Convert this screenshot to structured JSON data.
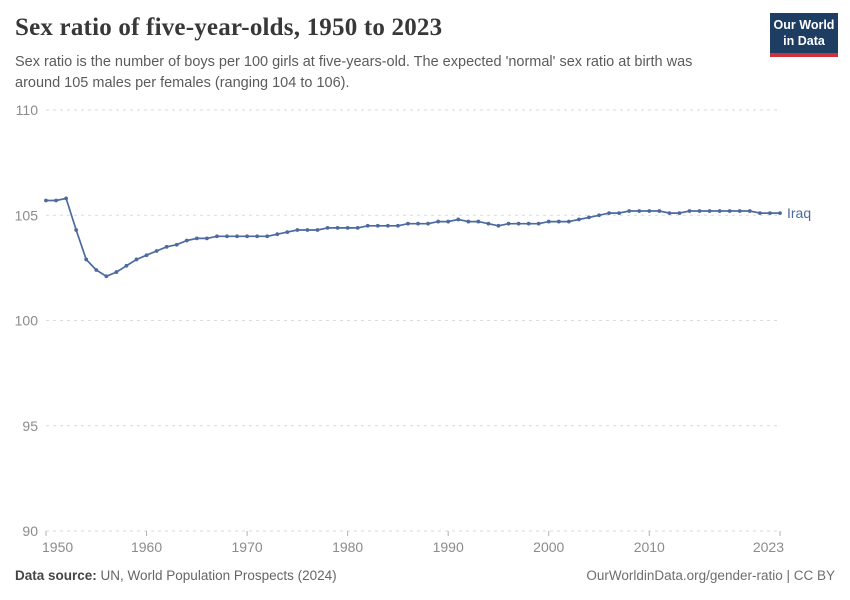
{
  "header": {
    "title": "Sex ratio of five-year-olds, 1950 to 2023",
    "subtitle": "Sex ratio is the number of boys per 100 girls at five-years-old. The expected 'normal' sex ratio at birth was around 105 males per females (ranging 104 to 106)."
  },
  "logo": {
    "line1": "Our World",
    "line2": "in Data",
    "bg_color": "#1d3d63",
    "accent_color": "#cf303e"
  },
  "footer": {
    "source_label": "Data source:",
    "source_text": " UN, World Population Prospects (2024)",
    "credit": "OurWorldinData.org/gender-ratio | CC BY"
  },
  "colors": {
    "series_blue": "#4c6a9f",
    "gridline": "#dadada",
    "tick_label": "#8b8b8b",
    "tick_mark": "#b0b0b0"
  },
  "chart_data": {
    "type": "line",
    "title": "Sex ratio of five-year-olds, 1950 to 2023",
    "xlabel": "",
    "ylabel": "",
    "ylim": [
      90,
      110
    ],
    "yticks": [
      90,
      95,
      100,
      105,
      110
    ],
    "xticks": [
      1950,
      1960,
      1970,
      1980,
      1990,
      2000,
      2010,
      2023
    ],
    "grid": "horizontal-dashed",
    "legend": "end-of-line-label",
    "x": [
      1950,
      1951,
      1952,
      1953,
      1954,
      1955,
      1956,
      1957,
      1958,
      1959,
      1960,
      1961,
      1962,
      1963,
      1964,
      1965,
      1966,
      1967,
      1968,
      1969,
      1970,
      1971,
      1972,
      1973,
      1974,
      1975,
      1976,
      1977,
      1978,
      1979,
      1980,
      1981,
      1982,
      1983,
      1984,
      1985,
      1986,
      1987,
      1988,
      1989,
      1990,
      1991,
      1992,
      1993,
      1994,
      1995,
      1996,
      1997,
      1998,
      1999,
      2000,
      2001,
      2002,
      2003,
      2004,
      2005,
      2006,
      2007,
      2008,
      2009,
      2010,
      2011,
      2012,
      2013,
      2014,
      2015,
      2016,
      2017,
      2018,
      2019,
      2020,
      2021,
      2022,
      2023
    ],
    "series": [
      {
        "name": "Iraq",
        "color": "#4c6a9f",
        "values": [
          105.7,
          105.7,
          105.8,
          104.3,
          102.9,
          102.4,
          102.1,
          102.3,
          102.6,
          102.9,
          103.1,
          103.3,
          103.5,
          103.6,
          103.8,
          103.9,
          103.9,
          104.0,
          104.0,
          104.0,
          104.0,
          104.0,
          104.0,
          104.1,
          104.2,
          104.3,
          104.3,
          104.3,
          104.4,
          104.4,
          104.4,
          104.4,
          104.5,
          104.5,
          104.5,
          104.5,
          104.6,
          104.6,
          104.6,
          104.7,
          104.7,
          104.8,
          104.7,
          104.7,
          104.6,
          104.5,
          104.6,
          104.6,
          104.6,
          104.6,
          104.7,
          104.7,
          104.7,
          104.8,
          104.9,
          105.0,
          105.1,
          105.1,
          105.2,
          105.2,
          105.2,
          105.2,
          105.1,
          105.1,
          105.2,
          105.2,
          105.2,
          105.2,
          105.2,
          105.2,
          105.2,
          105.1,
          105.1,
          105.1
        ]
      }
    ]
  }
}
